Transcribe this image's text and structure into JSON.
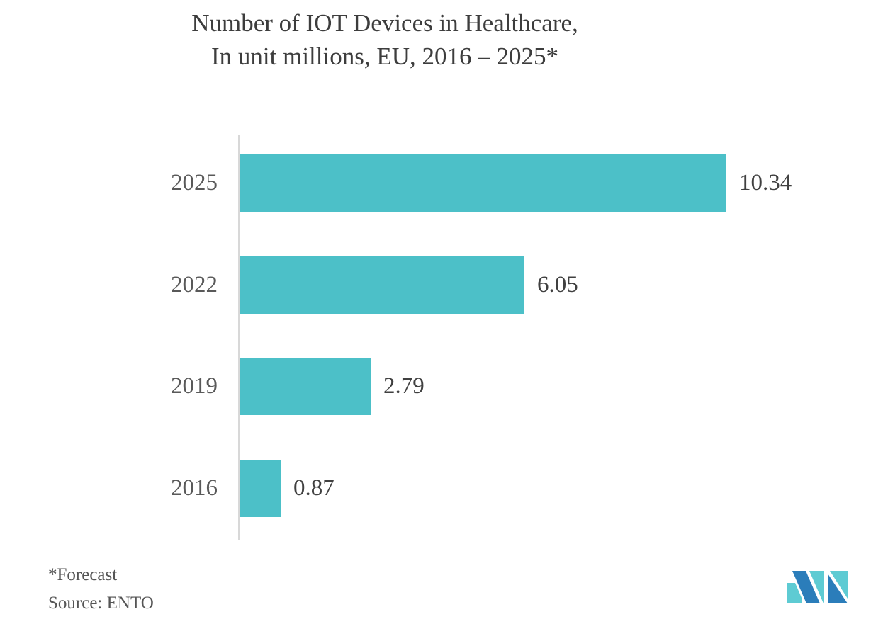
{
  "title": {
    "line1": "Number of IOT Devices in Healthcare,",
    "line2": "In unit millions, EU, 2016 – 2025*"
  },
  "chart_data": {
    "type": "bar",
    "orientation": "horizontal",
    "title": "Number of IOT Devices in Healthcare, In unit millions, EU, 2016 – 2025*",
    "categories": [
      "2025",
      "2022",
      "2019",
      "2016"
    ],
    "values": [
      10.34,
      6.05,
      2.79,
      0.87
    ],
    "value_labels": [
      "10.34",
      "6.05",
      "2.79",
      "0.87"
    ],
    "xlabel": "",
    "ylabel": "",
    "xlim": [
      0,
      10.34
    ],
    "grid": false,
    "legend": "none",
    "bar_color": "#4CC0C8"
  },
  "footnotes": {
    "forecast": "*Forecast",
    "source": "Source: ENTO"
  },
  "logo": {
    "name": "mordor-intelligence-logo",
    "blue": "#2B7DBA",
    "teal": "#5ECBD3"
  },
  "colors": {
    "background": "#FFFFFF",
    "bar": "#4CC0C8",
    "title_text": "#3D3D3D",
    "category_label_text": "#595959",
    "value_label_text": "#404040",
    "axis_line": "#D8D8D8",
    "footnote_text": "#555555"
  }
}
